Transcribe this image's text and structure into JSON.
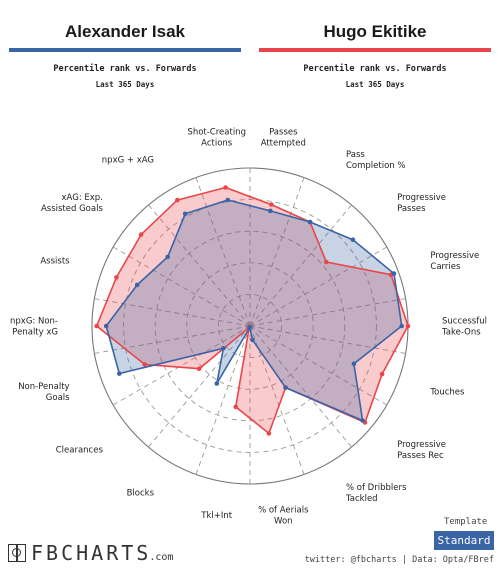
{
  "header": {
    "player1": {
      "name": "Alexander Isak",
      "subtitle": "Percentile rank vs. Forwards",
      "period": "Last 365 Days"
    },
    "player2": {
      "name": "Hugo Ekitike",
      "subtitle": "Percentile rank vs. Forwards",
      "period": "Last 365 Days"
    }
  },
  "colors": {
    "player1": "#3a64a5",
    "player2": "#e8464a",
    "grid": "#999999"
  },
  "chart_data": {
    "type": "radar",
    "scale": [
      0,
      100
    ],
    "categories": [
      "Passes\nAttempted",
      "Pass\nCompletion %",
      "Progressive\nPasses",
      "Progressive\nCarries",
      "Successful\nTake-Ons",
      "Touches",
      "Progressive\nPasses Rec",
      "% of Dribblers\nTackled",
      "% of Aerials\nWon",
      "Tkl+Int",
      "Blocks",
      "Clearances",
      "Non-Penalty\nGoals",
      "npxG: Non-\nPenalty xG",
      "Assists",
      "xAG: Exp.\nAssisted Goals",
      "npxG + xAG",
      "Shot-Creating\nActions"
    ],
    "series": [
      {
        "name": "Alexander Isak",
        "values": [
          74,
          76,
          85,
          97,
          96,
          70,
          93,
          45,
          9,
          1,
          42,
          22,
          88,
          91,
          76,
          68,
          82,
          81
        ]
      },
      {
        "name": "Hugo Ekitike",
        "values": [
          78,
          76,
          63,
          95,
          100,
          89,
          95,
          45,
          69,
          52,
          1,
          42,
          71,
          97,
          90,
          90,
          92,
          89
        ]
      }
    ]
  },
  "branding": {
    "logo": "FBCHARTS",
    "logo_suffix": ".com",
    "credits": "twitter: @fbcharts | Data: Opta/FBref"
  },
  "template": {
    "label": "Template",
    "button": "Standard"
  }
}
